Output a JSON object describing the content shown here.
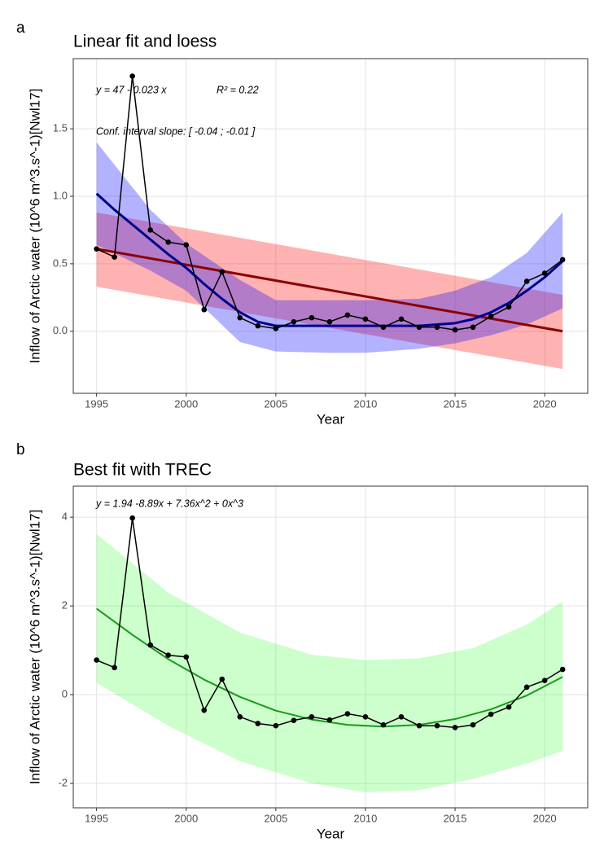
{
  "chart_data": [
    {
      "type": "line",
      "tag": "a",
      "title": "Linear fit and loess",
      "xlabel": "Year",
      "ylabel": "Inflow of Arctic water (10^6 m^3.s^-1)[Nwl17]",
      "annotations": [
        "y = 47 - 0.023 x",
        "R² = 0.22",
        "Conf. interval slope:  [ -0.04 ; -0.01 ]"
      ],
      "annotation_color": "#a52a2a",
      "xlim": [
        1993.7,
        2022.4
      ],
      "xticks": [
        1995,
        2000,
        2005,
        2010,
        2015,
        2020
      ],
      "ylim": [
        -0.46,
        2.02
      ],
      "yticks": [
        {
          "value": 0,
          "label": "0.0"
        },
        0.5,
        {
          "value": 1,
          "label": "1.0"
        },
        1.5
      ],
      "grid": true,
      "bands": [
        {
          "color": "#ff0000",
          "opacity": 0.3,
          "x": [
            1995,
            2021
          ],
          "lower": [
            0.33,
            -0.28
          ],
          "upper": [
            0.88,
            0.27
          ]
        },
        {
          "color": "#0000ff",
          "opacity": 0.3,
          "x": [
            1995,
            1998,
            2000,
            2003,
            2005,
            2008,
            2010,
            2013,
            2015,
            2017,
            2019,
            2021
          ],
          "lower": [
            0.64,
            0.45,
            0.3,
            -0.08,
            -0.15,
            -0.16,
            -0.16,
            -0.13,
            -0.09,
            -0.03,
            0.05,
            0.17
          ],
          "upper": [
            1.4,
            0.9,
            0.65,
            0.38,
            0.23,
            0.23,
            0.23,
            0.24,
            0.3,
            0.4,
            0.58,
            0.88
          ]
        }
      ],
      "fits": [
        {
          "color": "#8b0000",
          "width": 3,
          "x": [
            1995,
            2021
          ],
          "values": [
            0.61,
            0.0
          ]
        },
        {
          "color": "#00008b",
          "width": 3,
          "x": [
            1995,
            1996,
            1997,
            1998,
            1999,
            2000,
            2001,
            2002,
            2003,
            2004,
            2005,
            2006,
            2007,
            2008,
            2009,
            2010,
            2011,
            2012,
            2013,
            2014,
            2015,
            2016,
            2017,
            2018,
            2019,
            2020,
            2021
          ],
          "values": [
            1.02,
            0.9,
            0.79,
            0.68,
            0.57,
            0.47,
            0.35,
            0.24,
            0.14,
            0.07,
            0.04,
            0.04,
            0.04,
            0.04,
            0.04,
            0.04,
            0.04,
            0.04,
            0.04,
            0.05,
            0.06,
            0.09,
            0.14,
            0.21,
            0.3,
            0.4,
            0.52
          ]
        }
      ],
      "points": {
        "color": "#000000",
        "x": [
          1995,
          1996,
          1997,
          1998,
          1999,
          2000,
          2001,
          2002,
          2003,
          2004,
          2005,
          2006,
          2007,
          2008,
          2009,
          2010,
          2011,
          2012,
          2013,
          2014,
          2015,
          2016,
          2017,
          2018,
          2019,
          2020,
          2021
        ],
        "values": [
          0.61,
          0.55,
          1.89,
          0.75,
          0.66,
          0.64,
          0.16,
          0.44,
          0.1,
          0.04,
          0.02,
          0.07,
          0.1,
          0.07,
          0.12,
          0.09,
          0.03,
          0.09,
          0.03,
          0.03,
          0.01,
          0.03,
          0.11,
          0.18,
          0.37,
          0.43,
          0.53
        ]
      }
    },
    {
      "type": "line",
      "tag": "b",
      "title": "Best fit with TREC",
      "xlabel": "Year",
      "ylabel": "Inflow of Arctic water (10^6 m^3.s^-1)[Nwl17]",
      "annotations": [
        "y =  1.94   -8.89x  + 7.36x^2  + 0x^3"
      ],
      "annotation_color": "#228b22",
      "xlim": [
        1993.7,
        2022.4
      ],
      "xticks": [
        1995,
        2000,
        2005,
        2010,
        2015,
        2020
      ],
      "ylim": [
        -2.55,
        4.7
      ],
      "yticks": [
        -2,
        0,
        2,
        4
      ],
      "grid": true,
      "bands": [
        {
          "color": "#00ff00",
          "opacity": 0.2,
          "x": [
            1995,
            1999,
            2003,
            2007,
            2010,
            2013,
            2016,
            2019,
            2021
          ],
          "lower": [
            0.27,
            -0.7,
            -1.5,
            -2.0,
            -2.2,
            -2.15,
            -1.9,
            -1.55,
            -1.27
          ],
          "upper": [
            3.62,
            2.3,
            1.4,
            0.9,
            0.78,
            0.82,
            1.05,
            1.58,
            2.1
          ]
        }
      ],
      "fits": [
        {
          "color": "#1a991a",
          "width": 2,
          "x": [
            1995,
            1997,
            1999,
            2001,
            2003,
            2005,
            2007,
            2009,
            2011,
            2013,
            2015,
            2017,
            2019,
            2021
          ],
          "values": [
            1.94,
            1.35,
            0.8,
            0.34,
            -0.05,
            -0.36,
            -0.56,
            -0.68,
            -0.72,
            -0.68,
            -0.55,
            -0.33,
            -0.02,
            0.4
          ]
        }
      ],
      "points": {
        "color": "#000000",
        "x": [
          1995,
          1996,
          1997,
          1998,
          1999,
          2000,
          2001,
          2002,
          2003,
          2004,
          2005,
          2006,
          2007,
          2008,
          2009,
          2010,
          2011,
          2012,
          2013,
          2014,
          2015,
          2016,
          2017,
          2018,
          2019,
          2020,
          2021
        ],
        "values": [
          0.78,
          0.61,
          3.98,
          1.12,
          0.89,
          0.85,
          -0.35,
          0.35,
          -0.5,
          -0.65,
          -0.7,
          -0.58,
          -0.5,
          -0.57,
          -0.43,
          -0.5,
          -0.68,
          -0.5,
          -0.7,
          -0.7,
          -0.74,
          -0.68,
          -0.44,
          -0.28,
          0.17,
          0.32,
          0.57
        ]
      }
    }
  ]
}
